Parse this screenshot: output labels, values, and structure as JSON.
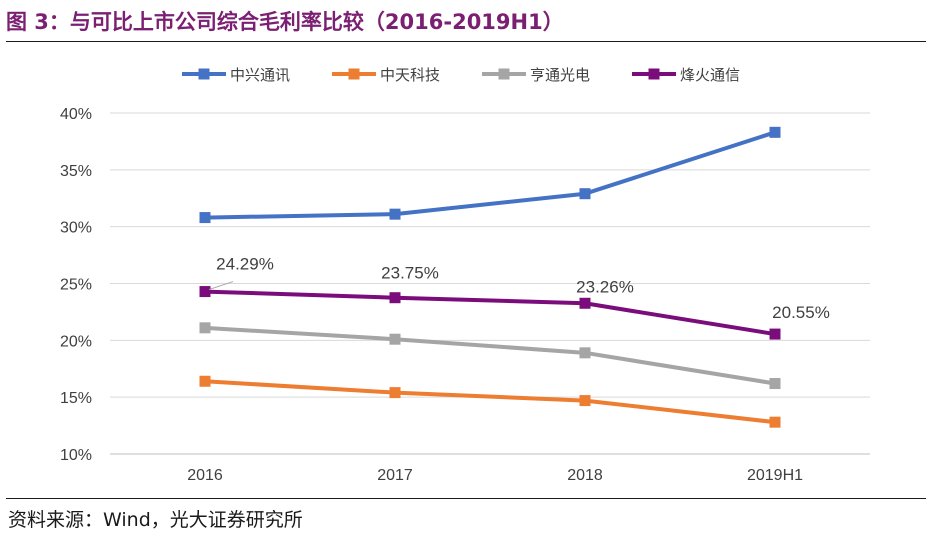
{
  "figure_title": "图 3：与可比上市公司综合毛利率比较（2016-2019H1）",
  "source": "资料来源：Wind，光大证券研究所",
  "chart_data": {
    "type": "line",
    "title": "与可比上市公司综合毛利率比较（2016-2019H1）",
    "xlabel": "",
    "ylabel": "",
    "categories": [
      "2016",
      "2017",
      "2018",
      "2019H1"
    ],
    "ylim": [
      10,
      40
    ],
    "yticks": [
      10,
      15,
      20,
      25,
      30,
      35,
      40
    ],
    "ytick_labels": [
      "10%",
      "15%",
      "20%",
      "25%",
      "30%",
      "35%",
      "40%"
    ],
    "grid": true,
    "legend_position": "top",
    "series": [
      {
        "name": "中兴通讯",
        "color": "#4472c4",
        "values": [
          30.8,
          31.1,
          32.9,
          38.3
        ]
      },
      {
        "name": "中天科技",
        "color": "#ed7d31",
        "values": [
          16.4,
          15.4,
          14.7,
          12.8
        ]
      },
      {
        "name": "亨通光电",
        "color": "#a5a5a5",
        "values": [
          21.1,
          20.1,
          18.9,
          16.2
        ]
      },
      {
        "name": "烽火通信",
        "color": "#7b0c7b",
        "values": [
          24.29,
          23.75,
          23.26,
          20.55
        ],
        "data_labels": [
          "24.29%",
          "23.75%",
          "23.26%",
          "20.55%"
        ]
      }
    ]
  }
}
